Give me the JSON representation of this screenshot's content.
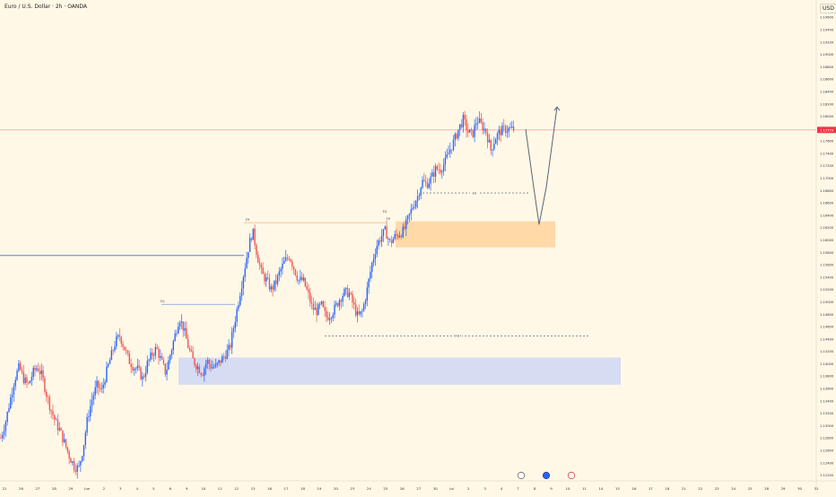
{
  "header": {
    "title": "Euro / U.S. Dollar · 2h · OANDA",
    "currency_button": "USD"
  },
  "chart_data": {
    "type": "candlestick",
    "price_axis": {
      "ticks": [
        "1.19600",
        "1.19400",
        "1.19200",
        "1.19000",
        "1.18800",
        "1.18600",
        "1.18400",
        "1.18200",
        "1.18000",
        "1.17800",
        "1.17600",
        "1.17400",
        "1.17200",
        "1.17000",
        "1.16800",
        "1.16600",
        "1.16400",
        "1.16200",
        "1.16000",
        "1.15800",
        "1.15600",
        "1.15400",
        "1.15200",
        "1.15000",
        "1.14800",
        "1.14600",
        "1.14400",
        "1.14200",
        "1.14000",
        "1.13800",
        "1.13600",
        "1.13400",
        "1.13200",
        "1.13000",
        "1.12800",
        "1.12600",
        "1.12400",
        "1.12200"
      ],
      "ylim": [
        1.1215,
        1.1985
      ],
      "current_price": "1.17779",
      "current_price_value": 1.17779
    },
    "time_axis": {
      "ticks": [
        "22",
        "26",
        "27",
        "28",
        "29",
        "Jun",
        "2",
        "3",
        "4",
        "5",
        "6",
        "9",
        "10",
        "11",
        "12",
        "13",
        "16",
        "17",
        "18",
        "19",
        "20",
        "23",
        "24",
        "25",
        "26",
        "27",
        "30",
        "Jul",
        "2",
        "3",
        "4",
        "7",
        "8",
        "9",
        "10",
        "11",
        "14",
        "15",
        "16",
        "17",
        "18",
        "21",
        "22",
        "23",
        "24",
        "25",
        "28",
        "29",
        "30",
        "31"
      ]
    },
    "annotations": {
      "sr_line_level": 1.1575,
      "high_labels": [
        "EH",
        "EQ",
        "EQ",
        "EH"
      ],
      "level_labels": [
        "EH",
        "EQH"
      ],
      "dotted_levels": [
        1.1676,
        1.1445
      ],
      "dotted_labels": [
        "EH",
        "EQH"
      ],
      "orange_zone": [
        1.1588,
        1.163
      ],
      "blue_zone": [
        1.1366,
        1.141
      ],
      "projection": [
        1.1779,
        1.1685,
        1.1625,
        1.1685,
        1.1815
      ]
    },
    "colors": {
      "up": "#2962ff",
      "down": "#ef5350",
      "price_line": "#f7a9a6",
      "orange_zone": "#ffd9a8",
      "blue_zone": "#d6dcf2",
      "blue_line": "#5b7fd6"
    },
    "close_path": [
      1.128,
      1.1305,
      1.134,
      1.1375,
      1.1395,
      1.1375,
      1.1365,
      1.1385,
      1.1395,
      1.138,
      1.135,
      1.1325,
      1.1305,
      1.129,
      1.127,
      1.125,
      1.1235,
      1.123,
      1.1265,
      1.1315,
      1.1345,
      1.1365,
      1.1355,
      1.1385,
      1.141,
      1.1435,
      1.1445,
      1.1425,
      1.1405,
      1.1395,
      1.139,
      1.1375,
      1.14,
      1.1415,
      1.1425,
      1.1405,
      1.1385,
      1.1415,
      1.1445,
      1.1475,
      1.1455,
      1.1425,
      1.1405,
      1.1395,
      1.1385,
      1.1405,
      1.1395,
      1.1395,
      1.1405,
      1.1415,
      1.1425,
      1.1465,
      1.1505,
      1.1545,
      1.1585,
      1.1615,
      1.1575,
      1.1545,
      1.1535,
      1.152,
      1.153,
      1.155,
      1.1565,
      1.1575,
      1.1555,
      1.1535,
      1.1535,
      1.1515,
      1.149,
      1.1485,
      1.1495,
      1.1475,
      1.148,
      1.149,
      1.1505,
      1.1515,
      1.1515,
      1.1495,
      1.1475,
      1.1485,
      1.152,
      1.156,
      1.159,
      1.1605,
      1.1615,
      1.1595,
      1.1605,
      1.161,
      1.1615,
      1.1635,
      1.1655,
      1.167,
      1.1695,
      1.169,
      1.17,
      1.1715,
      1.1715,
      1.1725,
      1.1745,
      1.176,
      1.178,
      1.1795,
      1.1775,
      1.177,
      1.1795,
      1.1785,
      1.1775,
      1.1745,
      1.1765,
      1.1775,
      1.1779,
      1.1779,
      1.1779
    ]
  }
}
